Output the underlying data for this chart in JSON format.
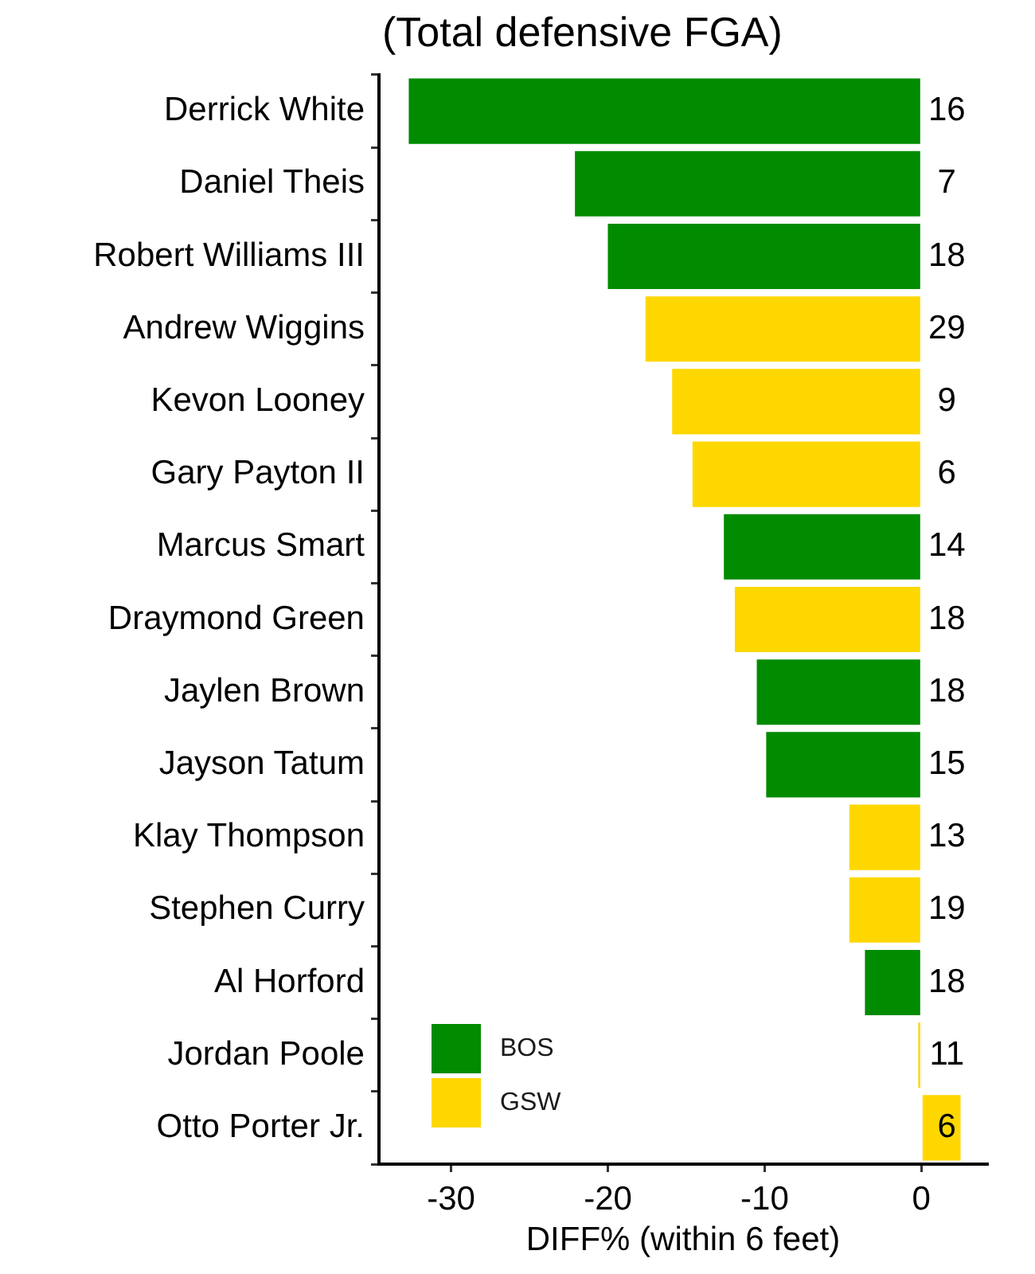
{
  "chart_data": {
    "type": "bar",
    "orientation": "horizontal",
    "title": "(Total defensive FGA)",
    "xlabel": "DIFF% (within 6 feet)",
    "categories": [
      "Derrick White",
      "Daniel Theis",
      "Robert Williams III",
      "Andrew Wiggins",
      "Kevon Looney",
      "Gary Payton II",
      "Marcus Smart",
      "Draymond Green",
      "Jaylen Brown",
      "Jayson Tatum",
      "Klay Thompson",
      "Stephen Curry",
      "Al Horford",
      "Jordan Poole",
      "Otto Porter Jr."
    ],
    "series": [
      {
        "name": "BOS",
        "color": "#008b00",
        "values": [
          -32.7,
          -22.1,
          -20.0,
          null,
          null,
          null,
          -12.6,
          null,
          -10.5,
          -9.9,
          null,
          null,
          -3.6,
          null,
          null
        ]
      },
      {
        "name": "GSW",
        "color": "#ffd700",
        "values": [
          null,
          null,
          null,
          -17.6,
          -15.9,
          -14.6,
          null,
          -11.9,
          null,
          null,
          -4.6,
          -4.6,
          null,
          -0.2,
          2.5
        ]
      }
    ],
    "annotations": [
      "16",
      "7",
      "18",
      "29",
      "9",
      "6",
      "14",
      "18",
      "18",
      "15",
      "13",
      "19",
      "18",
      "11",
      "6"
    ],
    "xlim": [
      -34.6,
      4.2
    ],
    "xticks": [
      -30,
      -20,
      -10,
      0
    ],
    "grid": false,
    "legend": "bottom left"
  }
}
